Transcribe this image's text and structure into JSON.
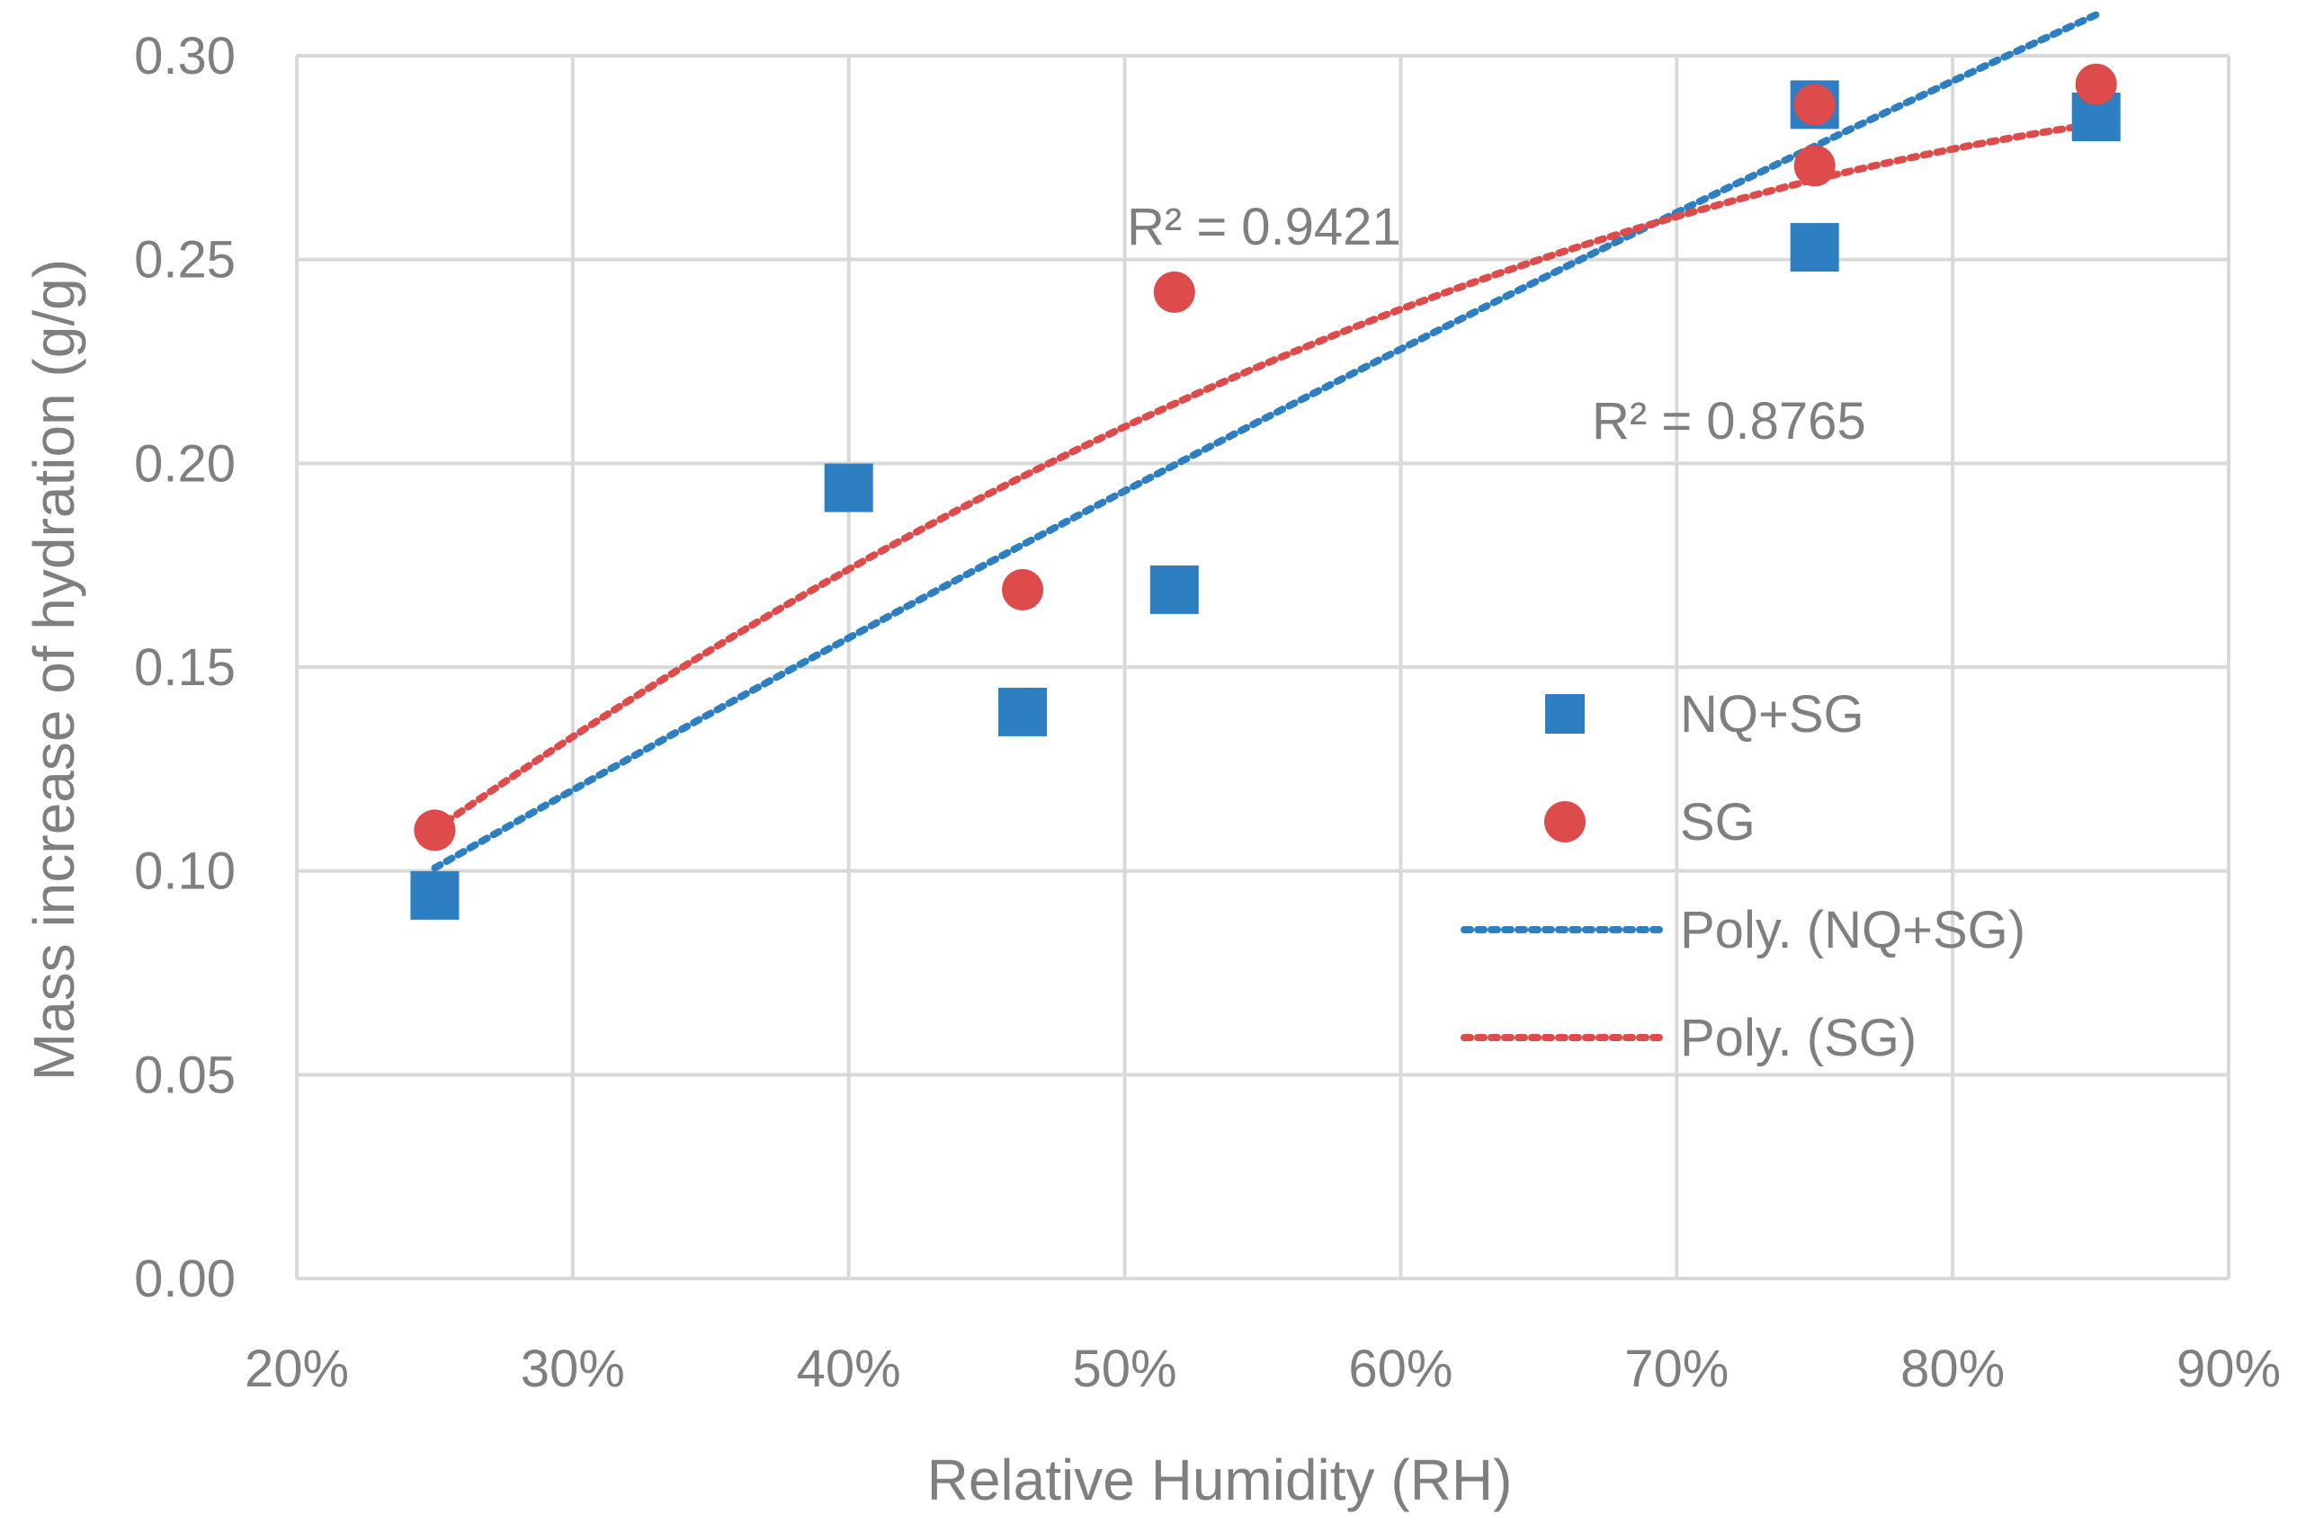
{
  "chart_data": {
    "type": "scatter",
    "title": "",
    "xlabel": "Relative Humidity (RH)",
    "ylabel": "Mass increase of hydration (g/g)",
    "xlim": [
      0.2,
      0.9
    ],
    "ylim": [
      0.0,
      0.3
    ],
    "x_ticks": [
      0.2,
      0.3,
      0.4,
      0.5,
      0.6,
      0.7,
      0.8,
      0.9
    ],
    "x_tick_labels": [
      "20%",
      "30%",
      "40%",
      "50%",
      "60%",
      "70%",
      "80%",
      "90%"
    ],
    "y_ticks": [
      0.0,
      0.05,
      0.1,
      0.15,
      0.2,
      0.25,
      0.3
    ],
    "y_tick_labels": [
      "0.00",
      "0.05",
      "0.10",
      "0.15",
      "0.20",
      "0.25",
      "0.30"
    ],
    "grid": true,
    "legend_position": "right",
    "series": [
      {
        "name": "NQ+SG",
        "marker": "square",
        "color": "#2e7ec2",
        "x": [
          0.25,
          0.4,
          0.463,
          0.518,
          0.75,
          0.75,
          0.852
        ],
        "y": [
          0.094,
          0.194,
          0.139,
          0.169,
          0.253,
          0.288,
          0.285
        ]
      },
      {
        "name": "SG",
        "marker": "circle",
        "color": "#de4b4b",
        "x": [
          0.25,
          0.463,
          0.518,
          0.75,
          0.75,
          0.852
        ],
        "y": [
          0.11,
          0.169,
          0.242,
          0.273,
          0.288,
          0.293
        ]
      }
    ],
    "trendlines": [
      {
        "name": "Poly. (NQ+SG)",
        "color": "#2e7ec2",
        "style": "dotted",
        "x_range": [
          0.25,
          0.852
        ],
        "coefficients": [
          -0.0633,
          0.4175,
          0.0003
        ],
        "r2_label": "R² = 0.8765"
      },
      {
        "name": "Poly. (SG)",
        "color": "#de4b4b",
        "style": "dotted",
        "x_range": [
          0.25,
          0.852
        ],
        "coefficients": [
          -0.3063,
          0.6253,
          -0.0271
        ],
        "r2_label": "R² = 0.9421"
      }
    ],
    "legend": [
      "NQ+SG",
      "SG",
      "Poly. (NQ+SG)",
      "Poly. (SG)"
    ]
  }
}
